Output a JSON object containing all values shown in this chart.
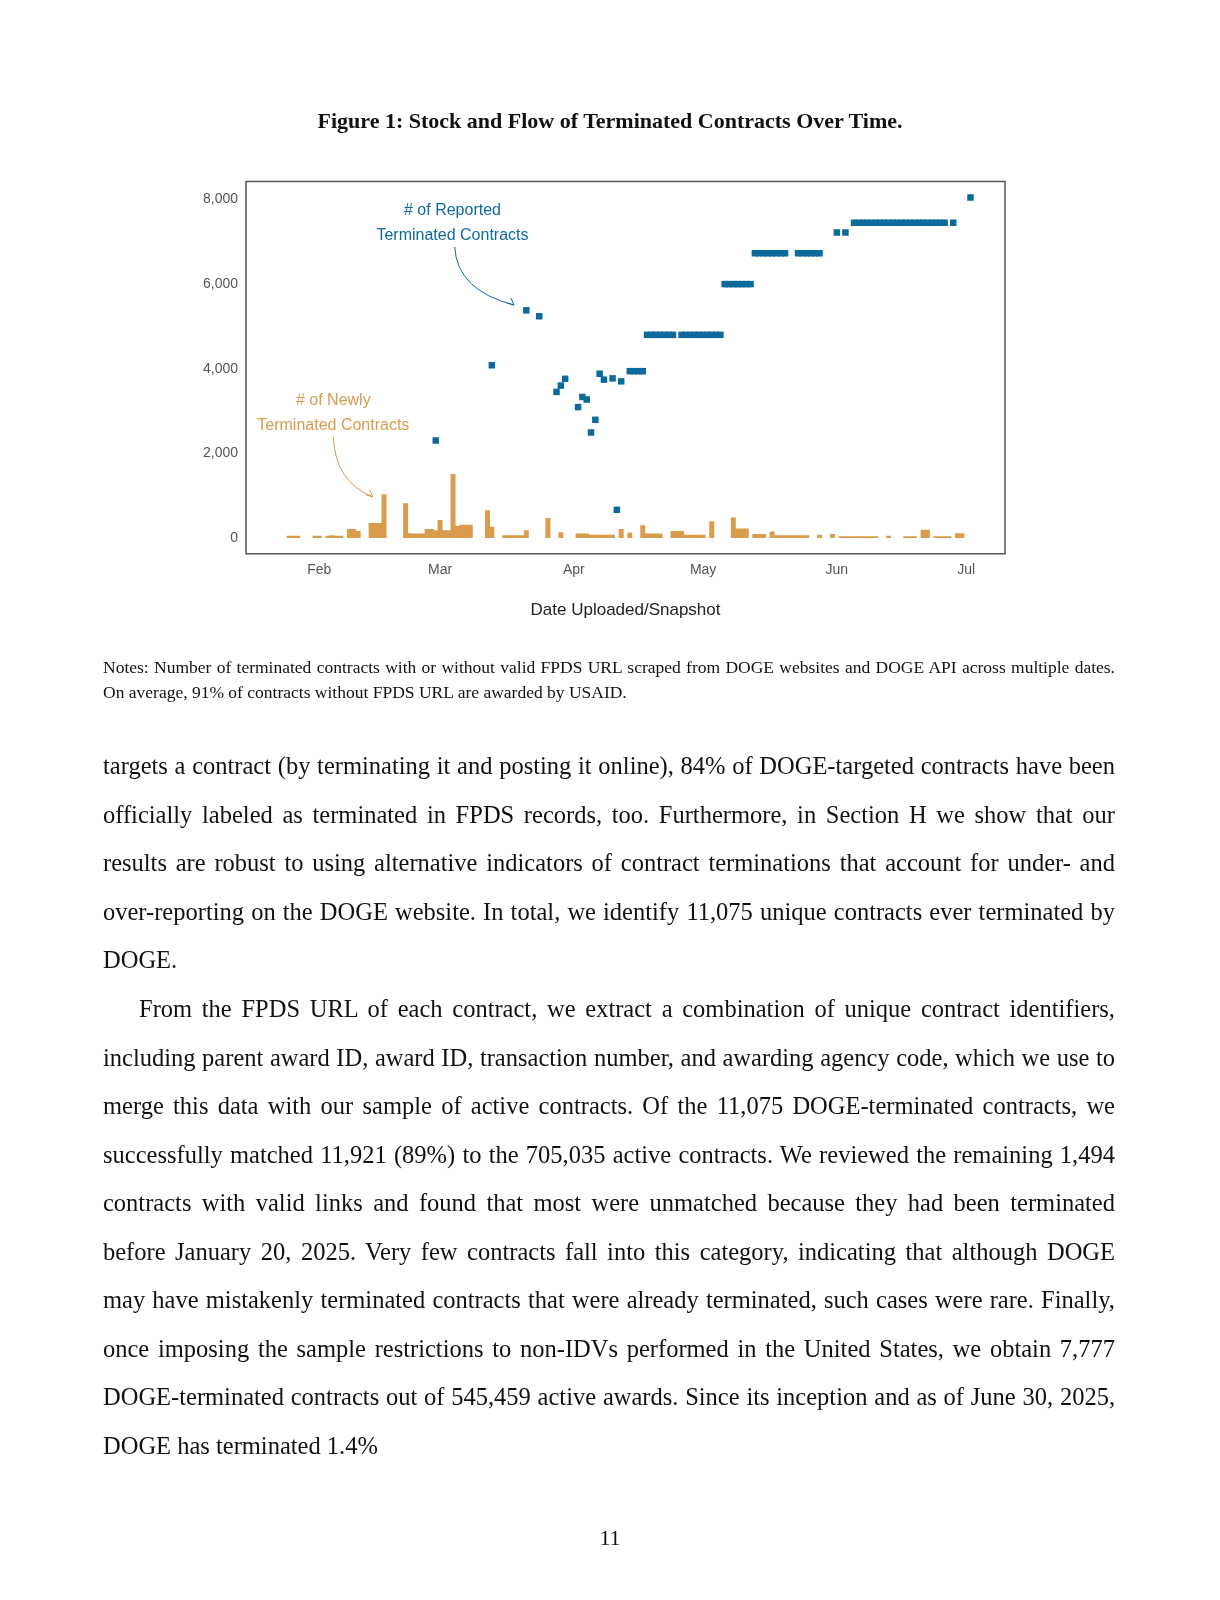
{
  "chart_data": {
    "type": "bar",
    "title": "Figure 1: Stock and Flow of Terminated Contracts Over Time.",
    "xlabel": "Date Uploaded/Snapshot",
    "xlim": [
      "--01-15",
      "--07-10"
    ],
    "xticks": [
      {
        "value": "--02-01",
        "label": "Feb"
      },
      {
        "value": "--03-01",
        "label": "Mar"
      },
      {
        "value": "--04-01",
        "label": "Apr"
      },
      {
        "value": "--05-01",
        "label": "May"
      },
      {
        "value": "--06-01",
        "label": "Jun"
      },
      {
        "value": "--07-01",
        "label": "Jul"
      }
    ],
    "ylim": [
      -380,
      8430
    ],
    "yticks": [
      0,
      {
        "value": 2000,
        "label": "2,000"
      },
      {
        "value": 4000,
        "label": "4,000"
      },
      {
        "value": 6000,
        "label": "6,000"
      },
      {
        "value": 8000,
        "label": "8,000"
      }
    ],
    "grid": false,
    "legend": false,
    "series": [
      {
        "color": "#d99b4c",
        "x": [
          "--01-25",
          "--01-26",
          "--01-27",
          "--01-31",
          "--02-01",
          "--02-03",
          "--02-04",
          "--02-05",
          "--02-06",
          "--02-08",
          "--02-09",
          "--02-10",
          "--02-13",
          "--02-14",
          "--02-15",
          "--02-16",
          "--02-21",
          "--02-22",
          "--02-23",
          "--02-24",
          "--02-25",
          "--02-26",
          "--02-27",
          "--02-28",
          "--03-01",
          "--03-02",
          "--03-03",
          "--03-04",
          "--03-05",
          "--03-06",
          "--03-07",
          "--03-08",
          "--03-12",
          "--03-13",
          "--03-16",
          "--03-17",
          "--03-18",
          "--03-19",
          "--03-20",
          "--03-21",
          "--03-26",
          "--03-29",
          "--04-02",
          "--04-03",
          "--04-04",
          "--04-05",
          "--04-06",
          "--04-07",
          "--04-08",
          "--04-09",
          "--04-10",
          "--04-12",
          "--04-14",
          "--04-17",
          "--04-18",
          "--04-19",
          "--04-20",
          "--04-21",
          "--04-24",
          "--04-25",
          "--04-26",
          "--04-27",
          "--04-28",
          "--04-29",
          "--04-30",
          "--05-01",
          "--05-03",
          "--05-08",
          "--05-09",
          "--05-10",
          "--05-11",
          "--05-13",
          "--05-14",
          "--05-15",
          "--05-17",
          "--05-18",
          "--05-19",
          "--05-20",
          "--05-21",
          "--05-22",
          "--05-23",
          "--05-24",
          "--05-25",
          "--05-28",
          "--05-31",
          "--06-02",
          "--06-03",
          "--06-04",
          "--06-05",
          "--06-06",
          "--06-07",
          "--06-08",
          "--06-09",
          "--06-10",
          "--06-13",
          "--06-17",
          "--06-18",
          "--06-19",
          "--06-21",
          "--06-22",
          "--06-24",
          "--06-25",
          "--06-26",
          "--06-27",
          "--06-29",
          "--06-30"
        ],
        "values": [
          40,
          40,
          40,
          40,
          40,
          40,
          50,
          40,
          40,
          200,
          200,
          150,
          340,
          340,
          340,
          1020,
          810,
          100,
          90,
          90,
          90,
          200,
          200,
          170,
          410,
          170,
          170,
          1500,
          270,
          300,
          300,
          300,
          640,
          250,
          50,
          50,
          50,
          50,
          50,
          170,
          460,
          120,
          90,
          90,
          90,
          60,
          60,
          60,
          60,
          60,
          60,
          200,
          110,
          290,
          90,
          90,
          90,
          90,
          150,
          150,
          150,
          60,
          60,
          60,
          60,
          60,
          380,
          470,
          210,
          210,
          210,
          80,
          80,
          80,
          140,
          50,
          50,
          50,
          50,
          50,
          50,
          50,
          50,
          60,
          80,
          30,
          30,
          30,
          30,
          30,
          30,
          30,
          30,
          30,
          40,
          30,
          30,
          30,
          180,
          180,
          30,
          30,
          30,
          30,
          100,
          100
        ]
      },
      {
        "type": "scatter",
        "color": "#0f6a9c",
        "marker": "square",
        "x": [
          "--02-28",
          "--03-13",
          "--03-21",
          "--03-24",
          "--03-28",
          "--03-29",
          "--03-30",
          "--04-02",
          "--04-03",
          "--04-04",
          "--04-05",
          "--04-06",
          "--04-07",
          "--04-08",
          "--04-10",
          "--04-11",
          "--04-12",
          "--04-14",
          "--04-15",
          "--04-16",
          "--04-17",
          "--04-18",
          "--04-19",
          "--04-20",
          "--04-21",
          "--04-22",
          "--04-23",
          "--04-24",
          "--04-26",
          "--04-27",
          "--04-28",
          "--04-29",
          "--04-30",
          "--05-01",
          "--05-02",
          "--05-03",
          "--05-04",
          "--05-05",
          "--05-06",
          "--05-07",
          "--05-08",
          "--05-09",
          "--05-10",
          "--05-11",
          "--05-12",
          "--05-13",
          "--05-14",
          "--05-15",
          "--05-16",
          "--05-17",
          "--05-18",
          "--05-19",
          "--05-20",
          "--05-23",
          "--05-24",
          "--05-25",
          "--05-26",
          "--05-27",
          "--05-28",
          "--06-01",
          "--06-03",
          "--06-05",
          "--06-06",
          "--06-07",
          "--06-08",
          "--06-09",
          "--06-10",
          "--06-11",
          "--06-12",
          "--06-13",
          "--06-14",
          "--06-15",
          "--06-16",
          "--06-17",
          "--06-18",
          "--06-19",
          "--06-20",
          "--06-21",
          "--06-22",
          "--06-23",
          "--06-24",
          "--06-25",
          "--06-26",
          "--06-28",
          "--07-02"
        ],
        "values": [
          2300,
          4080,
          5380,
          5240,
          3450,
          3600,
          3760,
          3090,
          3330,
          3270,
          2490,
          2790,
          3880,
          3740,
          3770,
          660,
          3700,
          3940,
          3940,
          3940,
          3940,
          4800,
          4800,
          4800,
          4800,
          4800,
          4800,
          4800,
          4800,
          4800,
          4800,
          4800,
          4800,
          4800,
          4800,
          4800,
          4800,
          4800,
          6000,
          6000,
          6000,
          6000,
          6000,
          6000,
          6000,
          6730,
          6730,
          6730,
          6730,
          6730,
          6730,
          6730,
          6730,
          6730,
          6730,
          6730,
          6730,
          6730,
          6730,
          7220,
          7220,
          7450,
          7450,
          7450,
          7450,
          7450,
          7450,
          7450,
          7450,
          7450,
          7450,
          7450,
          7450,
          7450,
          7450,
          7450,
          7450,
          7450,
          7450,
          7450,
          7450,
          7450,
          7450,
          7450,
          8050
        ]
      }
    ],
    "annotations": [
      "# of Newly\nTerminated Contracts",
      "# of Reported\nTerminated Contracts",
      "Notes: Number of terminated contracts with or without valid FPDS URL scraped from DOGE websites and DOGE API across multiple dates. On average, 91% of contracts without FPDS URL are awarded by USAID.",
      "targets a contract (by terminating it and posting it online), 84% of DOGE-targeted contracts have been officially labeled as terminated in FPDS records, too. Furthermore, in Section H we show that our results are robust to using alternative indicators of contract terminations that account for under- and over-reporting on the DOGE website. In total, we identify 11,075 unique contracts ever terminated by DOGE.",
      "From the FPDS URL of each contract, we extract a combination of unique contract identifiers, including parent award ID, award ID, transaction number, and awarding agency code, which we use to merge this data with our sample of active contracts. Of the 11,075 DOGE-terminated contracts, we successfully matched 11,921 (89%) to the 705,035 active contracts. We reviewed the remaining 1,494 contracts with valid links and found that most were unmatched because they had been terminated before January 20, 2025. Very few contracts fall into this category, indicating that although DOGE may have mistakenly terminated contracts that were already terminated, such cases were rare. Finally, once imposing the sample restrictions to non-IDVs performed in the United States, we obtain 7,777 DOGE-terminated contracts out of 545,459 active awards. Since its inception and as of June 30, 2025, DOGE has terminated 1.4%",
      "11"
    ]
  }
}
